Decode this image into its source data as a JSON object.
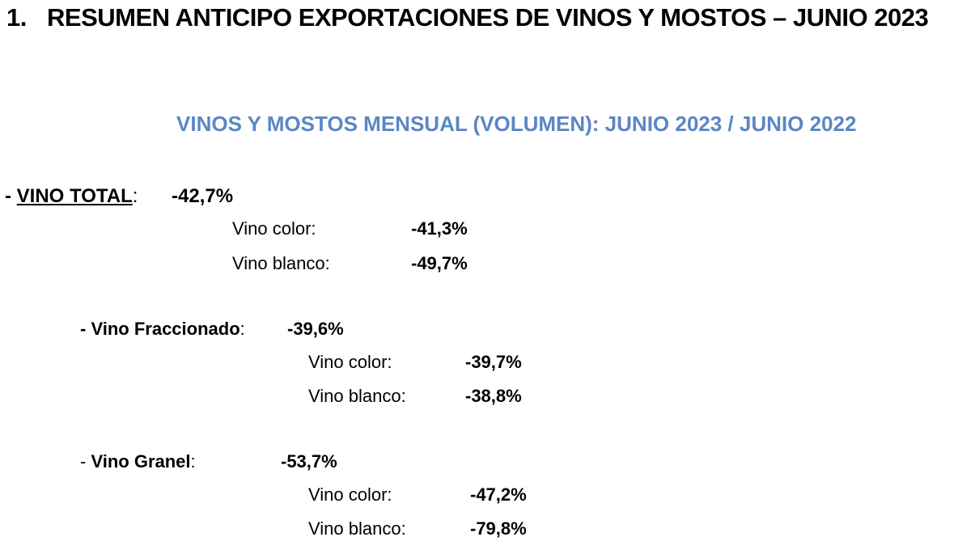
{
  "document": {
    "title_number": "1.",
    "title": "RESUMEN ANTICIPO EXPORTACIONES DE VINOS Y MOSTOS – JUNIO 2023",
    "subtitle": "VINOS Y MOSTOS MENSUAL (VOLUMEN): JUNIO 2023 / JUNIO 2022"
  },
  "sections": [
    {
      "prefix": "- ",
      "label": "VINO TOTAL",
      "colon": ":",
      "value": "-42,7%",
      "rows": [
        {
          "label": "Vino color:",
          "value": "-41,3%"
        },
        {
          "label": "Vino blanco:",
          "value": "-49,7%"
        }
      ]
    },
    {
      "prefix": "- ",
      "label": "Vino Fraccionado",
      "colon": ":",
      "value": "-39,6%",
      "rows": [
        {
          "label": "Vino color:",
          "value": "-39,7%"
        },
        {
          "label": "Vino blanco:",
          "value": "-38,8%"
        }
      ]
    },
    {
      "prefix": "- ",
      "label": "Vino Granel",
      "colon": ":",
      "value": "-53,7%",
      "rows": [
        {
          "label": "Vino color:",
          "value": "-47,2%"
        },
        {
          "label": "Vino blanco:",
          "value": "-79,8%"
        }
      ]
    }
  ],
  "colors": {
    "subtitle": "#5b86c6",
    "text": "#000000"
  }
}
